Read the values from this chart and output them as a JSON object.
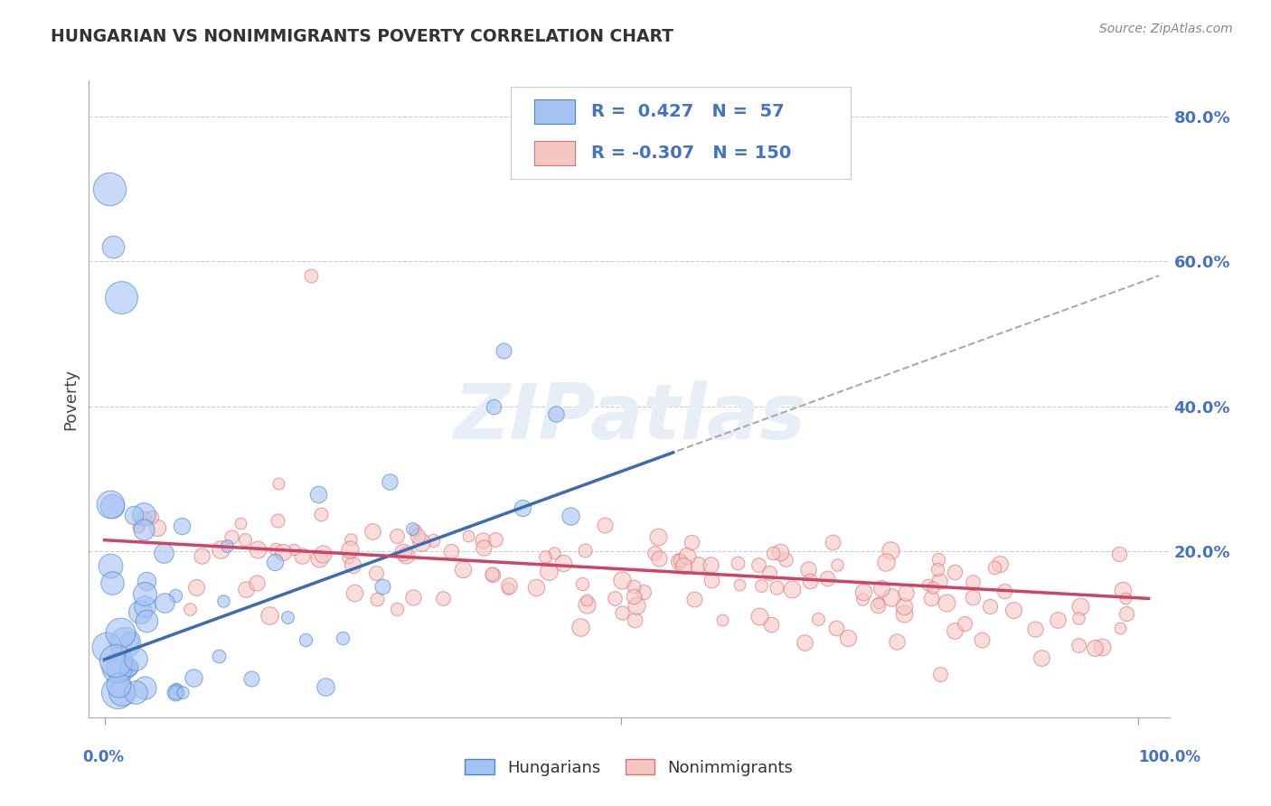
{
  "title": "HUNGARIAN VS NONIMMIGRANTS POVERTY CORRELATION CHART",
  "source": "Source: ZipAtlas.com",
  "ylabel": "Poverty",
  "blue_color": "#a4c2f4",
  "pink_color": "#f4c7c3",
  "blue_edge_color": "#4a86c8",
  "pink_edge_color": "#e06c75",
  "blue_line_color": "#3d6cad",
  "pink_line_color": "#cc4466",
  "dash_color": "#aaaaaa",
  "background_color": "#ffffff",
  "grid_color": "#cccccc",
  "right_tick_color": "#4472c4",
  "title_color": "#333333",
  "source_color": "#888888",
  "watermark_color": "#e8eef8",
  "xlim": [
    -0.015,
    1.03
  ],
  "ylim": [
    -0.03,
    0.85
  ],
  "yticks": [
    0.2,
    0.4,
    0.6,
    0.8
  ],
  "ytick_labels": [
    "20.0%",
    "40.0%",
    "60.0%",
    "80.0%"
  ],
  "legend_r1": "R =  0.427   N =  57",
  "legend_r2": "R = -0.307   N = 150"
}
